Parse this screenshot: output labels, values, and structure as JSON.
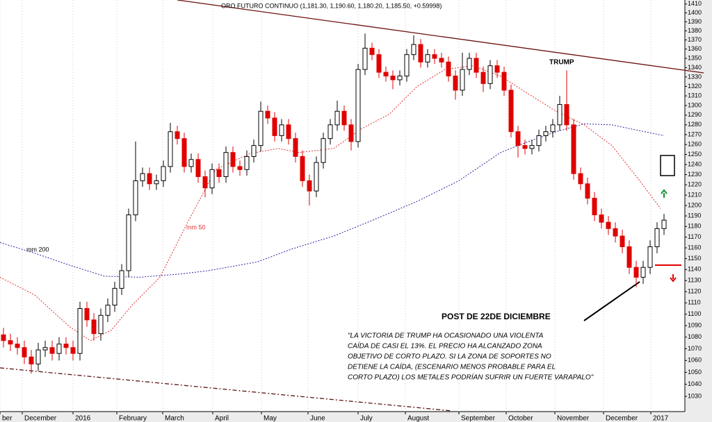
{
  "chart_data": {
    "type": "candlestick",
    "title": "ORO FUTURO CONTINUO (1,181.30, 1,190.60, 1,180.20, 1,185.50, +0.59998)",
    "scale": "log",
    "grid": true,
    "up_color": "#000000",
    "down_color": "#e00000",
    "open": [
      1082,
      1077,
      1074,
      1071,
      1063,
      1057,
      1069,
      1071,
      1066,
      1074,
      1071,
      1066,
      1105,
      1095,
      1083,
      1099,
      1108,
      1123,
      1139,
      1191,
      1224,
      1231,
      1221,
      1224,
      1238,
      1273,
      1266,
      1238,
      1245,
      1228,
      1217,
      1235,
      1228,
      1252,
      1238,
      1235,
      1248,
      1259,
      1294,
      1287,
      1269,
      1280,
      1266,
      1248,
      1224,
      1214,
      1242,
      1266,
      1280,
      1294,
      1280,
      1263,
      1338,
      1361,
      1354,
      1335,
      1331,
      1327,
      1331,
      1354,
      1365,
      1346,
      1354,
      1350,
      1346,
      1331,
      1316,
      1338,
      1350,
      1335,
      1323,
      1342,
      1335,
      1316,
      1273,
      1259,
      1256,
      1259,
      1269,
      1273,
      1280,
      1301,
      1280,
      1231,
      1221,
      1207,
      1191,
      1184,
      1178,
      1171,
      1161,
      1142,
      1133,
      1142,
      1161,
      1178
    ],
    "high": [
      1088,
      1083,
      1080,
      1077,
      1069,
      1075,
      1077,
      1077,
      1080,
      1080,
      1077,
      1111,
      1111,
      1101,
      1105,
      1114,
      1129,
      1145,
      1197,
      1263,
      1237,
      1237,
      1230,
      1244,
      1282,
      1279,
      1272,
      1251,
      1251,
      1234,
      1241,
      1241,
      1258,
      1258,
      1244,
      1254,
      1265,
      1304,
      1300,
      1293,
      1286,
      1286,
      1272,
      1254,
      1230,
      1248,
      1272,
      1286,
      1305,
      1300,
      1286,
      1344,
      1377,
      1367,
      1360,
      1341,
      1337,
      1337,
      1360,
      1375,
      1371,
      1360,
      1360,
      1356,
      1352,
      1337,
      1356,
      1356,
      1356,
      1341,
      1348,
      1348,
      1341,
      1322,
      1279,
      1265,
      1265,
      1275,
      1279,
      1286,
      1310,
      1337,
      1286,
      1237,
      1227,
      1213,
      1197,
      1190,
      1184,
      1177,
      1167,
      1148,
      1148,
      1167,
      1184,
      1192
    ],
    "low": [
      1071,
      1068,
      1065,
      1057,
      1049,
      1051,
      1063,
      1060,
      1060,
      1065,
      1060,
      1060,
      1089,
      1077,
      1077,
      1093,
      1102,
      1117,
      1133,
      1185,
      1218,
      1215,
      1215,
      1218,
      1232,
      1260,
      1232,
      1232,
      1222,
      1208,
      1211,
      1222,
      1222,
      1232,
      1229,
      1229,
      1242,
      1253,
      1281,
      1263,
      1263,
      1260,
      1242,
      1218,
      1200,
      1208,
      1236,
      1260,
      1274,
      1274,
      1254,
      1257,
      1332,
      1348,
      1329,
      1325,
      1317,
      1321,
      1325,
      1348,
      1340,
      1340,
      1344,
      1340,
      1325,
      1306,
      1310,
      1332,
      1329,
      1314,
      1317,
      1329,
      1310,
      1267,
      1247,
      1250,
      1250,
      1253,
      1263,
      1267,
      1274,
      1274,
      1225,
      1215,
      1201,
      1185,
      1178,
      1172,
      1165,
      1155,
      1136,
      1124,
      1127,
      1136,
      1155,
      1172
    ],
    "close": [
      1077,
      1074,
      1071,
      1063,
      1057,
      1069,
      1071,
      1066,
      1074,
      1071,
      1066,
      1105,
      1095,
      1083,
      1099,
      1108,
      1123,
      1139,
      1191,
      1224,
      1231,
      1221,
      1224,
      1238,
      1273,
      1266,
      1238,
      1245,
      1228,
      1217,
      1235,
      1228,
      1252,
      1238,
      1235,
      1248,
      1259,
      1294,
      1287,
      1269,
      1280,
      1266,
      1248,
      1224,
      1214,
      1242,
      1266,
      1280,
      1294,
      1280,
      1263,
      1338,
      1361,
      1354,
      1335,
      1331,
      1327,
      1331,
      1354,
      1365,
      1346,
      1354,
      1350,
      1346,
      1331,
      1316,
      1338,
      1350,
      1335,
      1323,
      1342,
      1335,
      1316,
      1273,
      1259,
      1256,
      1259,
      1269,
      1273,
      1280,
      1301,
      1280,
      1231,
      1221,
      1207,
      1191,
      1184,
      1178,
      1171,
      1161,
      1142,
      1133,
      1142,
      1161,
      1178,
      1186
    ],
    "overlays": [
      {
        "name": "mm 50",
        "color": "#e03030",
        "x": [
          -0.5,
          4.5,
          9.5,
          12.5,
          15.5,
          18.5,
          22.5,
          26.5,
          30.5,
          35.5,
          39.5,
          42.5,
          47.5,
          51.5,
          55.5,
          59.5,
          63.5,
          67.5,
          71.5,
          75.5,
          79.5,
          83.5,
          87.5,
          91.5,
          94.5
        ],
        "values": [
          1133,
          1117,
          1089,
          1077,
          1086,
          1108,
          1133,
          1184,
          1235,
          1251,
          1256,
          1252,
          1256,
          1276,
          1291,
          1320,
          1338,
          1342,
          1331,
          1312,
          1294,
          1280,
          1259,
          1224,
          1197
        ]
      },
      {
        "name": "mm 200",
        "color": "#3020a0",
        "x": [
          -0.5,
          4.5,
          9.5,
          14.5,
          19.5,
          25.5,
          29.5,
          36.5,
          41.5,
          47.5,
          53.5,
          59.5,
          65.5,
          71.5,
          75.5,
          79.5,
          83.5,
          87.5,
          91.5,
          95
        ],
        "values": [
          1165,
          1155,
          1144,
          1134,
          1133,
          1136,
          1139,
          1147,
          1159,
          1171,
          1187,
          1204,
          1224,
          1252,
          1263,
          1273,
          1281,
          1280,
          1274,
          1269
        ]
      }
    ],
    "xlim": [
      -0.5,
      98
    ],
    "ylim": [
      1017.5,
      1414.5
    ],
    "xticks": [
      {
        "value": -0.5,
        "label": "ber"
      },
      {
        "value": 2.7,
        "label": "December"
      },
      {
        "value": 10,
        "label": "2016"
      },
      {
        "value": 16.3,
        "label": "February"
      },
      {
        "value": 22.9,
        "label": "March"
      },
      {
        "value": 30.1,
        "label": "April"
      },
      {
        "value": 37.1,
        "label": "May"
      },
      {
        "value": 43.8,
        "label": "June"
      },
      {
        "value": 51,
        "label": "July"
      },
      {
        "value": 57.8,
        "label": "August"
      },
      {
        "value": 65.5,
        "label": "September"
      },
      {
        "value": 72.3,
        "label": "October"
      },
      {
        "value": 79.3,
        "label": "November"
      },
      {
        "value": 86.3,
        "label": "December"
      },
      {
        "value": 93.1,
        "label": "2017"
      }
    ],
    "yticks": [
      1030,
      1040,
      1050,
      1060,
      1070,
      1080,
      1090,
      1100,
      1110,
      1120,
      1130,
      1140,
      1150,
      1160,
      1170,
      1180,
      1190,
      1200,
      1210,
      1220,
      1230,
      1240,
      1250,
      1260,
      1270,
      1280,
      1290,
      1300,
      1310,
      1320,
      1330,
      1340,
      1350,
      1360,
      1370,
      1380,
      1390,
      1400,
      1410
    ],
    "annotations": {
      "trump": "TRUMP",
      "post": "POST DE 22DE DICIEMBRE",
      "quote": [
        "\"LA VICTORIA DE TRUMP HA OCASIONADO UNA VIOLENTA",
        "CAÍDA DE CASI EL 13%. EL PRECIO HA ALCANZADO ZONA",
        "OBJETIVO DE CORTO PLAZO. SI LA  ZONA DE SOPORTES NO",
        "DETIENE LA CAÍDA, (ESCENARIO MENOS PROBABLE PARA EL",
        "CORTO PLAZO) LOS METALES PODRÍAN SUFRIR UN FUERTE VARAPALO\""
      ]
    }
  }
}
